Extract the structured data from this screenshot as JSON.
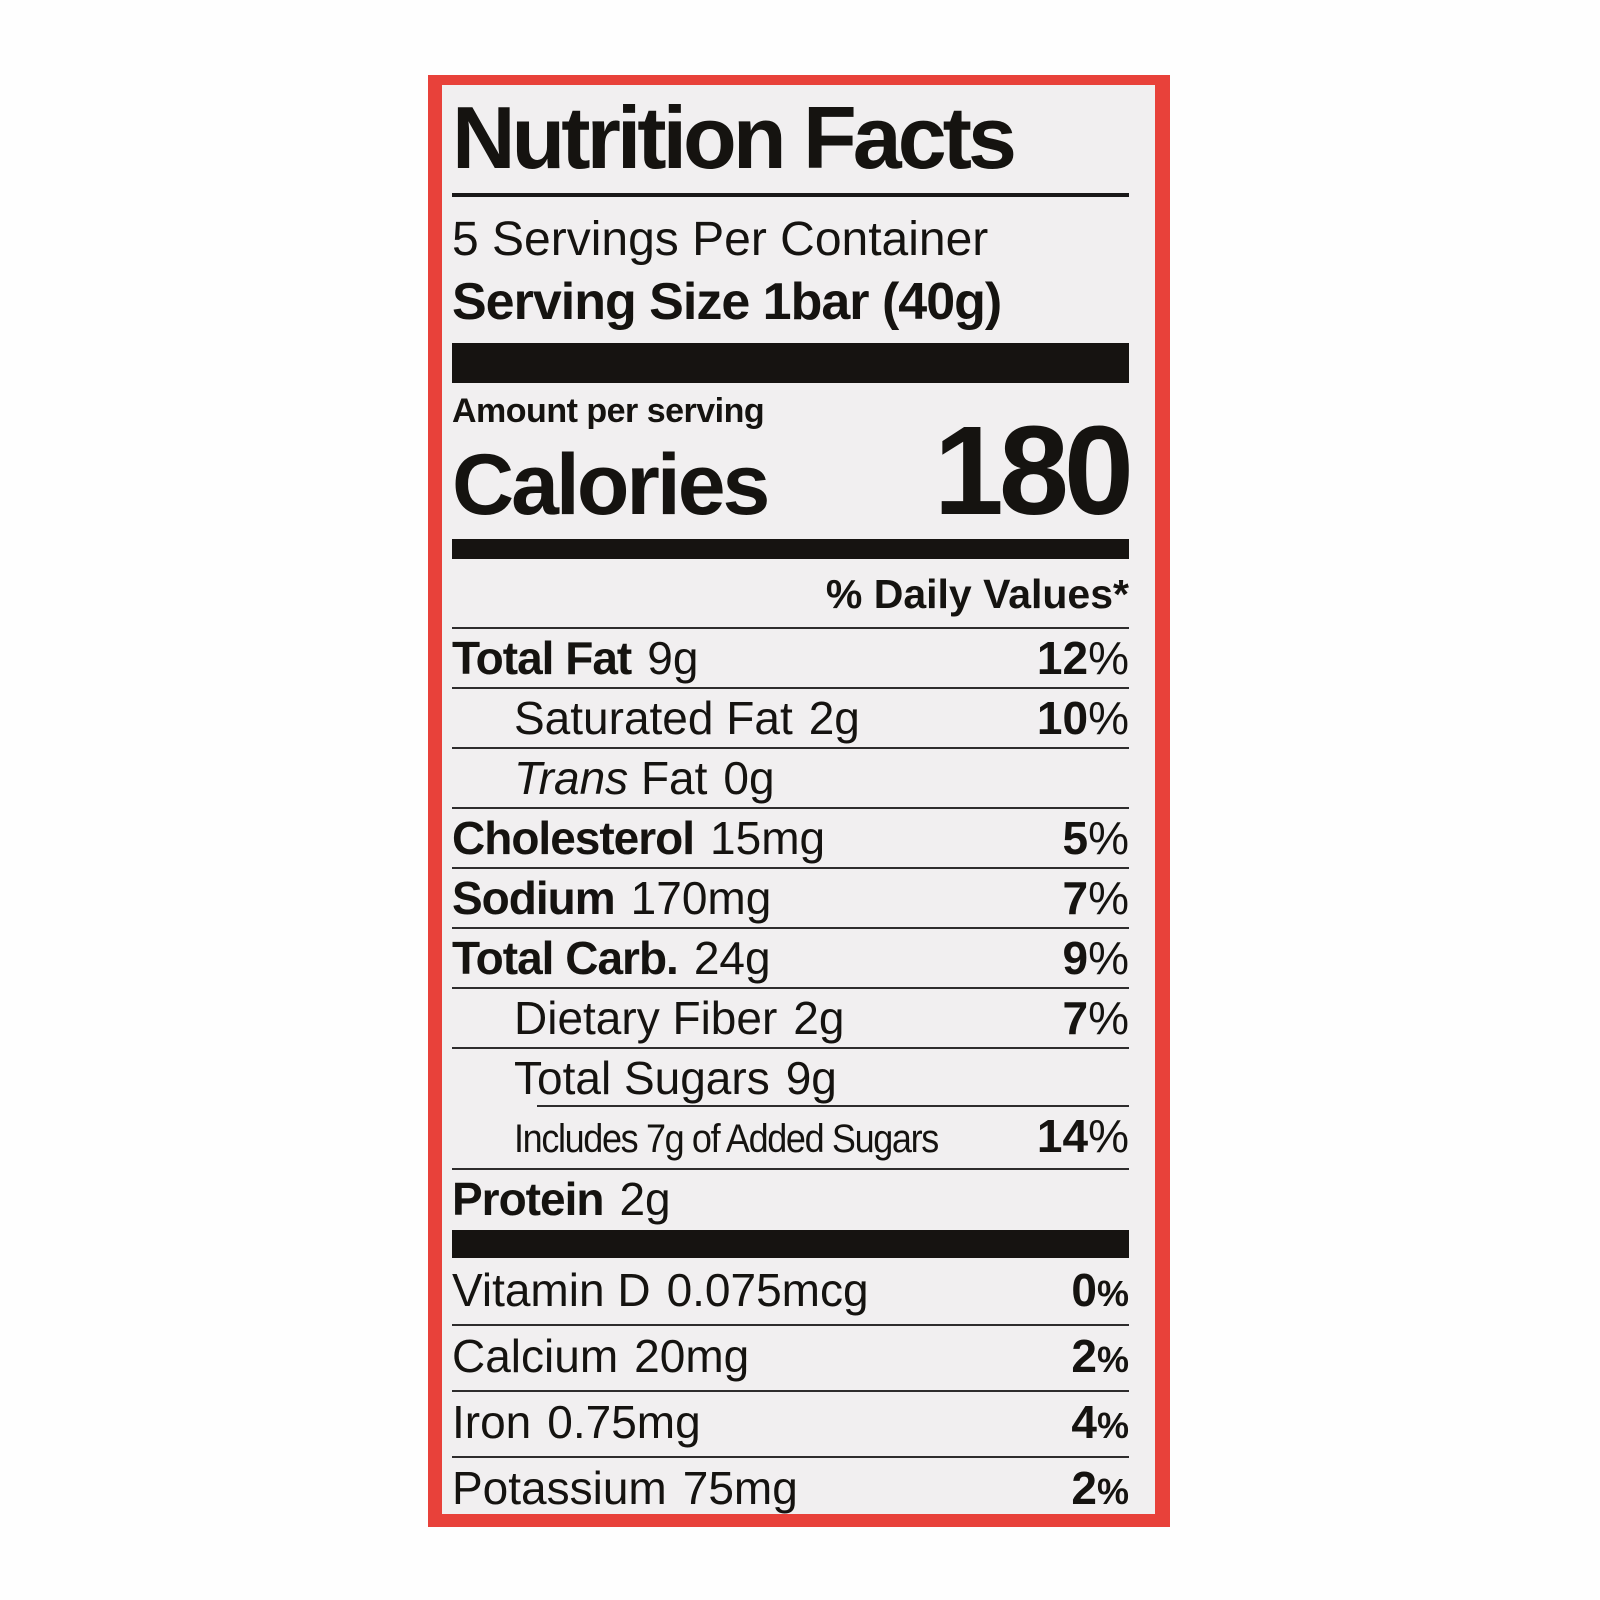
{
  "label": {
    "title": "Nutrition Facts",
    "servings_per_container": "5 Servings Per Container",
    "serving_size": "Serving Size 1bar (40g)",
    "amount_per_serving": "Amount per serving",
    "calories_label": "Calories",
    "calories_value": "180",
    "daily_values_header": "% Daily Values*",
    "percent_sign": "%",
    "nutrients": [
      {
        "name": "Total Fat",
        "amount": "9g",
        "dv": "12",
        "bold": true,
        "sep": "full"
      },
      {
        "name": "Saturated Fat",
        "amount": "2g",
        "dv": "10",
        "indent": true,
        "sep": "full"
      },
      {
        "prefix_italic": "Trans",
        "name": "Fat",
        "amount": "0g",
        "indent": true,
        "sep": "full"
      },
      {
        "name": "Cholesterol",
        "amount": "15mg",
        "dv": "5",
        "bold": true,
        "sep": "full"
      },
      {
        "name": "Sodium",
        "amount": "170mg",
        "dv": "7",
        "bold": true,
        "sep": "full"
      },
      {
        "name": "Total Carb.",
        "amount": "24g",
        "dv": "9",
        "bold": true,
        "sep": "full"
      },
      {
        "name": "Dietary Fiber",
        "amount": "2g",
        "dv": "7",
        "indent": true,
        "sep": "full"
      },
      {
        "name": "Total Sugars",
        "amount": "9g",
        "indent": true,
        "sep": "indent"
      },
      {
        "name": "Includes 7g of Added Sugars",
        "dv": "14",
        "indent": true,
        "condensed": true,
        "sep": "full"
      },
      {
        "name": "Protein",
        "amount": "2g",
        "bold": true,
        "sep": "none"
      }
    ],
    "micronutrients": [
      {
        "name": "Vitamin D",
        "amount": "0.075mcg",
        "dv": "0",
        "sep": "full"
      },
      {
        "name": "Calcium",
        "amount": "20mg",
        "dv": "2",
        "sep": "full"
      },
      {
        "name": "Iron",
        "amount": "0.75mg",
        "dv": "4",
        "sep": "full"
      },
      {
        "name": "Potassium",
        "amount": "75mg",
        "dv": "2",
        "sep": "none"
      }
    ],
    "colors": {
      "border_red": "#e8413a",
      "label_bg": "#f1eff0",
      "text": "#151310"
    }
  }
}
